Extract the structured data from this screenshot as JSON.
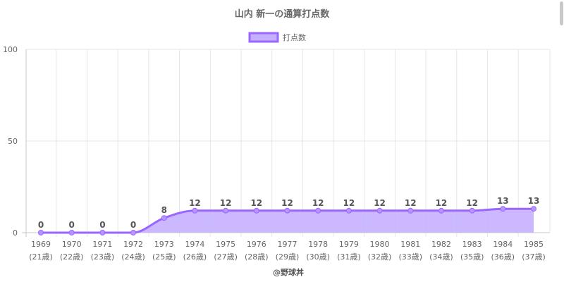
{
  "chart_data": {
    "type": "area",
    "title": "山内 新一の通算打点数",
    "legend": {
      "position": "top",
      "entries": [
        "打点数"
      ]
    },
    "categories": [
      "1969",
      "1970",
      "1971",
      "1972",
      "1973",
      "1974",
      "1975",
      "1976",
      "1977",
      "1978",
      "1979",
      "1980",
      "1981",
      "1982",
      "1983",
      "1984",
      "1985"
    ],
    "category_sublabels": [
      "(21歳)",
      "(22歳)",
      "(23歳)",
      "(24歳)",
      "(25歳)",
      "(26歳)",
      "(27歳)",
      "(28歳)",
      "(29歳)",
      "(30歳)",
      "(31歳)",
      "(32歳)",
      "(33歳)",
      "(34歳)",
      "(35歳)",
      "(36歳)",
      "(37歳)"
    ],
    "series": [
      {
        "name": "打点数",
        "values": [
          0,
          0,
          0,
          0,
          8,
          12,
          12,
          12,
          12,
          12,
          12,
          12,
          12,
          12,
          12,
          13,
          13
        ]
      }
    ],
    "ylim": [
      0,
      100
    ],
    "yticks": [
      0,
      50,
      100
    ],
    "grid": true,
    "colors": {
      "line": "#9966ff",
      "fill": "#c5b0ff",
      "grid": "#e6e6e6",
      "text": "#666666"
    }
  },
  "footer": "@野球丼"
}
